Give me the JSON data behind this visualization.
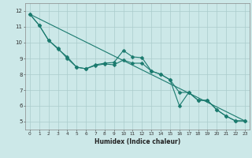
{
  "xlabel": "Humidex (Indice chaleur)",
  "background_color": "#cce8e8",
  "grid_color": "#aacccc",
  "line_color": "#1a7a6e",
  "xlim": [
    -0.5,
    23.5
  ],
  "ylim": [
    4.5,
    12.5
  ],
  "xticks": [
    0,
    1,
    2,
    3,
    4,
    5,
    6,
    7,
    8,
    9,
    10,
    11,
    12,
    13,
    14,
    15,
    16,
    17,
    18,
    19,
    20,
    21,
    22,
    23
  ],
  "yticks": [
    5,
    6,
    7,
    8,
    9,
    10,
    11,
    12
  ],
  "line1_x": [
    0,
    1,
    2,
    3,
    4,
    5,
    6,
    7,
    8,
    9,
    10,
    11,
    12,
    13,
    14,
    15,
    16,
    17,
    18,
    19,
    20,
    21,
    22,
    23
  ],
  "line1_y": [
    11.8,
    11.1,
    10.15,
    9.6,
    9.1,
    8.45,
    8.35,
    8.6,
    8.7,
    8.75,
    9.5,
    9.1,
    9.05,
    8.2,
    8.0,
    7.65,
    6.0,
    6.85,
    6.35,
    6.35,
    5.75,
    5.35,
    5.05,
    5.05
  ],
  "line2_x": [
    0,
    1,
    2,
    3,
    4,
    5,
    6,
    7,
    8,
    9,
    10,
    11,
    12,
    13,
    14,
    15,
    16,
    17,
    18,
    19,
    20,
    21,
    22,
    23
  ],
  "line2_y": [
    11.8,
    11.1,
    10.15,
    9.65,
    9.0,
    8.45,
    8.35,
    8.55,
    8.65,
    8.6,
    8.9,
    8.7,
    8.7,
    8.2,
    8.0,
    7.65,
    6.85,
    6.85,
    6.35,
    6.35,
    5.75,
    5.35,
    5.05,
    5.05
  ],
  "line3_x": [
    0,
    23
  ],
  "line3_y": [
    11.8,
    5.05
  ],
  "xlabel_fontsize": 5.5,
  "tick_fontsize_x": 4.2,
  "tick_fontsize_y": 5.0,
  "linewidth": 0.8,
  "markersize": 2.5
}
